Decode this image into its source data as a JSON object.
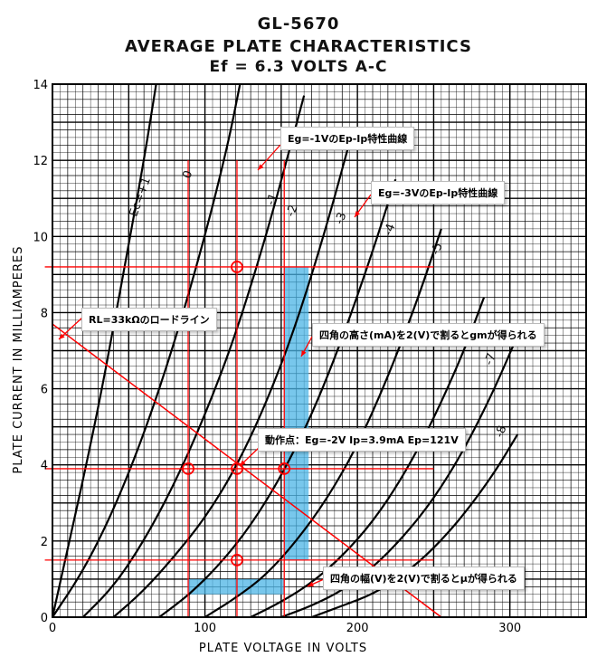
{
  "chart_data": {
    "type": "line",
    "title": [
      "GL-5670",
      "AVERAGE PLATE CHARACTERISTICS",
      "Ef = 6.3  VOLTS  A-C"
    ],
    "xlabel": "PLATE VOLTAGE IN VOLTS",
    "ylabel": "PLATE CURRENT IN MILLIAMPERES",
    "xlim": [
      0,
      350
    ],
    "ylim": [
      0,
      14
    ],
    "xticks": [
      0,
      100,
      200,
      300
    ],
    "yticks": [
      0,
      2,
      4,
      6,
      8,
      10,
      12,
      14
    ],
    "grid": true,
    "curve_labels": [
      {
        "text": "Ec=+1",
        "x": 55,
        "y": 10.5
      },
      {
        "text": "0",
        "x": 90,
        "y": 11.5
      },
      {
        "text": "-1",
        "x": 145,
        "y": 10.8
      },
      {
        "text": "-2",
        "x": 158,
        "y": 10.5
      },
      {
        "text": "-3",
        "x": 190,
        "y": 10.3
      },
      {
        "text": "-4",
        "x": 222,
        "y": 10.0
      },
      {
        "text": "-5",
        "x": 253,
        "y": 9.5
      },
      {
        "text": "-7",
        "x": 288,
        "y": 6.6
      },
      {
        "text": "-8",
        "x": 295,
        "y": 4.7
      }
    ],
    "series": [
      {
        "values": [
          [
            0,
            0
          ],
          [
            10,
            1.8
          ],
          [
            20,
            3.6
          ],
          [
            30,
            5.5
          ],
          [
            40,
            7.6
          ],
          [
            50,
            9.8
          ],
          [
            60,
            12
          ],
          [
            68,
            14
          ]
        ]
      },
      {
        "values": [
          [
            0,
            0
          ],
          [
            20,
            1.2
          ],
          [
            40,
            2.8
          ],
          [
            60,
            4.8
          ],
          [
            80,
            7.2
          ],
          [
            100,
            10
          ],
          [
            115,
            12.4
          ],
          [
            123,
            14
          ]
        ]
      },
      {
        "values": [
          [
            20,
            0
          ],
          [
            40,
            0.8
          ],
          [
            60,
            2
          ],
          [
            80,
            3.5
          ],
          [
            100,
            5.3
          ],
          [
            120,
            7.4
          ],
          [
            140,
            10
          ],
          [
            155,
            12.2
          ],
          [
            165,
            13.7
          ]
        ]
      },
      {
        "values": [
          [
            40,
            0
          ],
          [
            60,
            0.7
          ],
          [
            80,
            1.6
          ],
          [
            100,
            2.6
          ],
          [
            120,
            3.9
          ],
          [
            140,
            5.6
          ],
          [
            160,
            7.7
          ],
          [
            180,
            10.3
          ],
          [
            195,
            12.5
          ]
        ]
      },
      {
        "values": [
          [
            70,
            0
          ],
          [
            90,
            0.6
          ],
          [
            110,
            1.4
          ],
          [
            130,
            2.4
          ],
          [
            150,
            3.7
          ],
          [
            170,
            5.3
          ],
          [
            190,
            7.3
          ],
          [
            210,
            9.6
          ],
          [
            225,
            11.5
          ]
        ]
      },
      {
        "values": [
          [
            100,
            0
          ],
          [
            120,
            0.5
          ],
          [
            140,
            1.1
          ],
          [
            160,
            2
          ],
          [
            180,
            3.1
          ],
          [
            200,
            4.5
          ],
          [
            220,
            6.3
          ],
          [
            240,
            8.4
          ],
          [
            255,
            10.2
          ]
        ]
      },
      {
        "values": [
          [
            130,
            0
          ],
          [
            150,
            0.4
          ],
          [
            170,
            0.9
          ],
          [
            190,
            1.6
          ],
          [
            210,
            2.5
          ],
          [
            230,
            3.7
          ],
          [
            250,
            5.2
          ],
          [
            270,
            7
          ],
          [
            283,
            8.4
          ]
        ]
      },
      {
        "values": [
          [
            150,
            0
          ],
          [
            170,
            0.3
          ],
          [
            190,
            0.7
          ],
          [
            210,
            1.3
          ],
          [
            230,
            2.1
          ],
          [
            250,
            3.1
          ],
          [
            270,
            4.4
          ],
          [
            290,
            6
          ],
          [
            305,
            7.4
          ]
        ]
      },
      {
        "values": [
          [
            170,
            0
          ],
          [
            190,
            0.3
          ],
          [
            210,
            0.6
          ],
          [
            230,
            1.1
          ],
          [
            250,
            1.8
          ],
          [
            270,
            2.7
          ],
          [
            290,
            3.8
          ],
          [
            305,
            4.8
          ]
        ]
      }
    ],
    "load_line": {
      "x": [
        0,
        255
      ],
      "y": [
        7.7,
        0
      ]
    },
    "operating_point": {
      "x": 121,
      "y": 3.9
    }
  },
  "annotations": {
    "eg1": "Eg=-1VのEp-Ip特性曲線",
    "eg3": "Eg=-3VのEp-Ip特性曲線",
    "rl": "RL=33kΩのロードライン",
    "gm": "四角の高さ(mA)を2(V)で割るとgmが得られる",
    "op": "動作点：Eg=-2V Ip=3.9mA Ep=121V",
    "mu": "四角の幅(V)を2(V)で割るとμが得られる"
  },
  "colors": {
    "grid": "#000000",
    "curve": "#000000",
    "annotation": "#ff0000",
    "highlight": "#4bb4e6"
  }
}
